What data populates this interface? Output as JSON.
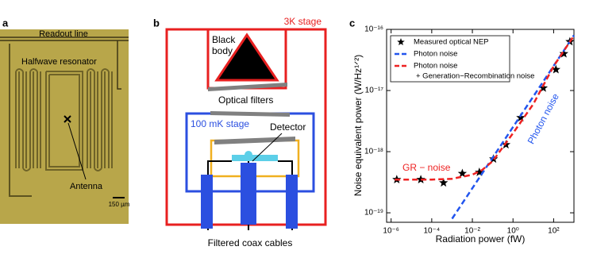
{
  "panel_a": {
    "label": "a",
    "readout_line": "Readout line",
    "resonator": "Halfwave resonator",
    "antenna": "Antenna",
    "scale_bar": "150 µm"
  },
  "panel_b": {
    "label": "b",
    "stage_3k": "3K stage",
    "black_body": [
      "Black",
      "body"
    ],
    "filters": "Optical filters",
    "stage_100mk": "100 mK stage",
    "detector": "Detector",
    "cables": "Filtered coax cables"
  },
  "chart_data": {
    "type": "line",
    "panel_label": "c",
    "xlabel": "Radiation power (fW)",
    "ylabel": "Noise equivalent power (W/Hz¹ᐟ²)",
    "xscale": "log",
    "yscale": "log",
    "xlim": [
      6e-07,
      1000
    ],
    "ylim": [
      7e-20,
      1e-16
    ],
    "xticks": [
      {
        "value": 1e-06,
        "label": "10⁻⁶"
      },
      {
        "value": 0.0001,
        "label": "10⁻⁴"
      },
      {
        "value": 0.01,
        "label": "10⁻²"
      },
      {
        "value": 1,
        "label": "10⁰"
      },
      {
        "value": 100,
        "label": "10²"
      }
    ],
    "yticks": [
      {
        "value": 1e-19,
        "label": "10⁻¹⁹"
      },
      {
        "value": 1e-18,
        "label": "10⁻¹⁸"
      },
      {
        "value": 1e-17,
        "label": "10⁻¹⁷"
      },
      {
        "value": 1e-16,
        "label": "10⁻¹⁶"
      }
    ],
    "series": [
      {
        "name": "Measured optical NEP",
        "style": "marker",
        "color": "#000000",
        "x": [
          1.9e-06,
          2.9e-05,
          0.00038,
          0.0032,
          0.022,
          0.11,
          0.45,
          2.4,
          31,
          130,
          320,
          630
        ],
        "values": [
          3.5e-19,
          3.5e-19,
          3.1e-19,
          4.4e-19,
          4.6e-19,
          7.6e-19,
          1.3e-18,
          3.6e-18,
          1.1e-17,
          2.2e-17,
          4e-17,
          6.3e-17
        ]
      },
      {
        "name": "Photon noise",
        "style": "dashed",
        "color": "#2255ee",
        "x": [
          0.001,
          1000
        ],
        "values": [
          8e-20,
          8e-17
        ]
      },
      {
        "name": "Photon noise",
        "style": "dashed",
        "color": "#ee2222",
        "x": [
          1.5e-06,
          0.0001,
          0.001,
          0.01,
          0.03,
          0.1,
          1,
          10,
          100,
          1000
        ],
        "values": [
          3.5e-19,
          3.5e-19,
          3.6e-19,
          4.2e-19,
          5e-19,
          7e-19,
          2e-18,
          6e-18,
          2.5e-17,
          7.9e-17
        ]
      }
    ],
    "legend_note": "+ Generation−Recombination noise",
    "annotations": [
      {
        "text": "GR − noise",
        "color": "#ee2222"
      },
      {
        "text": "Photon noise",
        "color": "#2255ee"
      }
    ]
  }
}
